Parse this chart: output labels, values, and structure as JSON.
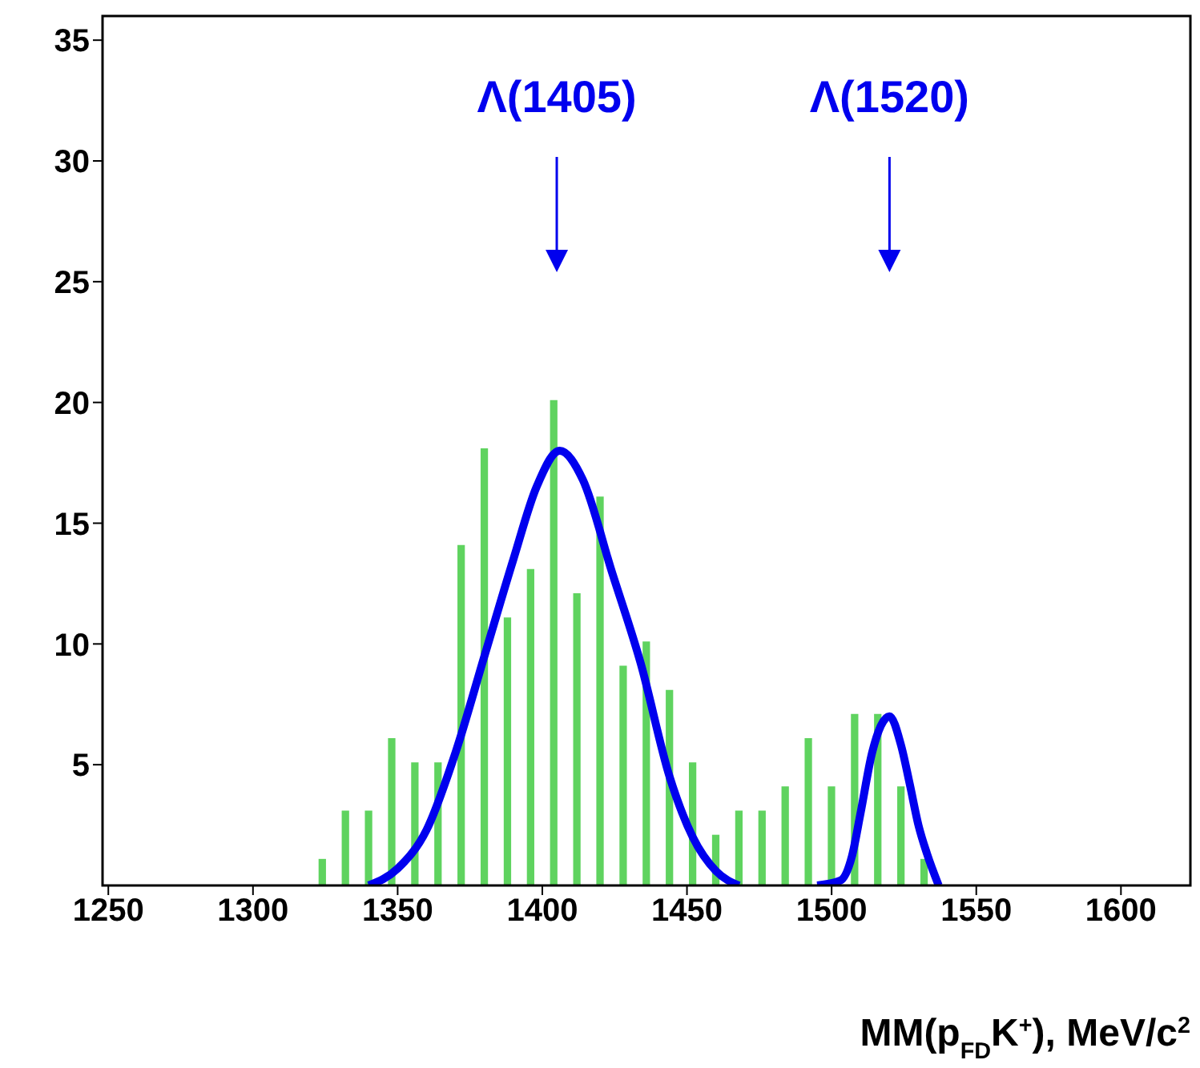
{
  "chart_data": {
    "type": "histogram",
    "xlabel": "MM(p$_{FD}$K$^{+}$), MeV/c$^{2}$",
    "bins": [
      1248,
      1256,
      1264,
      1272,
      1280,
      1288,
      1296,
      1304,
      1312,
      1320,
      1328,
      1336,
      1344,
      1352,
      1360,
      1368,
      1376,
      1384,
      1392,
      1400,
      1408,
      1416,
      1424,
      1432,
      1440,
      1448,
      1456,
      1464,
      1472,
      1480,
      1488,
      1496,
      1504,
      1512,
      1520,
      1528,
      1536,
      1544,
      1552,
      1560,
      1568,
      1576,
      1584,
      1592,
      1600,
      1608,
      1616,
      1624
    ],
    "series": [
      {
        "color": "#5fd35f",
        "values": [
          0,
          0,
          0,
          0,
          0,
          0,
          0,
          0,
          0,
          1,
          3,
          3,
          6,
          5,
          5,
          14,
          18,
          11,
          13,
          20,
          12,
          16,
          9,
          10,
          8,
          5,
          2,
          3,
          3,
          4,
          6,
          4,
          7,
          7,
          4,
          1,
          0,
          0,
          0,
          0,
          0,
          0,
          0,
          0,
          0,
          0,
          0
        ]
      },
      {
        "type": "line",
        "color": "#0000ee",
        "x": [
          1340,
          1350,
          1360,
          1370,
          1380,
          1390,
          1398,
          1406,
          1414,
          1424,
          1434,
          1444,
          1452,
          1460,
          1468
        ],
        "values": [
          0,
          0.7,
          2.3,
          5.5,
          9.5,
          13.5,
          16.5,
          18,
          16.8,
          13,
          9.2,
          4.5,
          2,
          0.6,
          0
        ]
      },
      {
        "type": "line",
        "color": "#0000ee",
        "x": [
          1495,
          1503,
          1507,
          1510,
          1514,
          1520,
          1524,
          1527,
          1530,
          1533,
          1537
        ],
        "values": [
          0,
          0.2,
          1.2,
          3,
          5.5,
          7,
          5.8,
          4.2,
          2.5,
          1.3,
          0
        ]
      }
    ],
    "xlim": [
      1248,
      1624
    ],
    "xticks": [
      1250,
      1300,
      1350,
      1400,
      1450,
      1500,
      1550,
      1600
    ],
    "ylim": [
      0,
      36
    ],
    "yticks": [
      5,
      10,
      15,
      20,
      25,
      30,
      35
    ],
    "annotations": [
      {
        "text": "Λ(1405)",
        "x": 1405
      },
      {
        "text": "Λ(1520)",
        "x": 1520
      }
    ]
  }
}
